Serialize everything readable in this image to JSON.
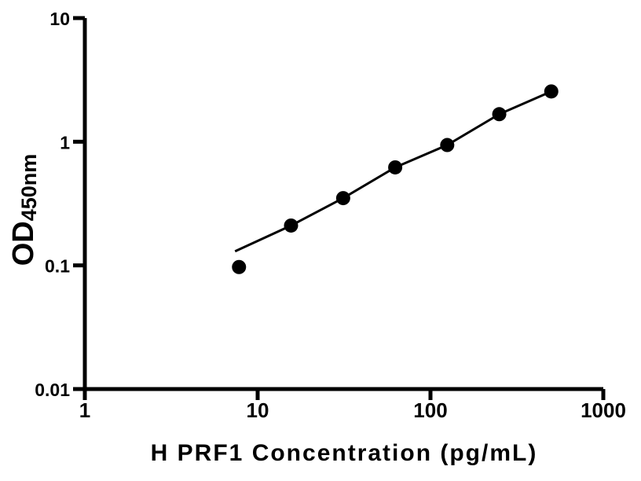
{
  "chart_data": {
    "type": "scatter",
    "title": "",
    "xlabel": "H PRF1 Concentration (pg/mL)",
    "ylabel_main": "OD",
    "ylabel_subscript": "450nm",
    "x_scale": "log",
    "y_scale": "log",
    "xlim": [
      1,
      1000
    ],
    "ylim": [
      0.01,
      10
    ],
    "x_ticks": [
      1,
      10,
      100,
      1000
    ],
    "x_tick_labels": [
      "1",
      "10",
      "100",
      "1000"
    ],
    "y_ticks": [
      10,
      1,
      0.1,
      0.01
    ],
    "y_tick_labels": [
      "10",
      "1",
      "0.1",
      "0.01"
    ],
    "grid": false,
    "legend": false,
    "colors": {
      "axis": "#000000",
      "marker": "#000000",
      "line": "#000000",
      "background": "#ffffff"
    },
    "series": [
      {
        "marker": "filled-circle",
        "x": [
          7.8,
          15.6,
          31.25,
          62.5,
          125,
          250,
          500
        ],
        "y": [
          0.097,
          0.21,
          0.35,
          0.62,
          0.94,
          1.67,
          2.55
        ]
      }
    ],
    "trend_line": {
      "x": [
        7.4,
        15.6,
        31.25,
        62.5,
        125,
        250,
        500
      ],
      "y": [
        0.13,
        0.21,
        0.35,
        0.62,
        0.94,
        1.67,
        2.55
      ]
    }
  }
}
